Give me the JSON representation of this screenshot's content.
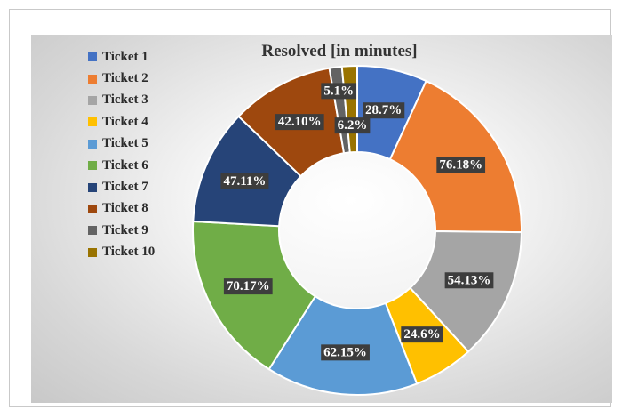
{
  "chart_data": {
    "type": "pie",
    "variant": "donut",
    "title": "Resolved [in minutes]",
    "legend_position": "left",
    "categories": [
      "Ticket 1",
      "Ticket 2",
      "Ticket 3",
      "Ticket 4",
      "Ticket 5",
      "Ticket 6",
      "Ticket 7",
      "Ticket 8",
      "Ticket 9",
      "Ticket 10"
    ],
    "labels": [
      "28.7%",
      "76.18%",
      "54.13%",
      "24.6%",
      "62.15%",
      "70.17%",
      "47.11%",
      "42.10%",
      "5.1%",
      "6.2%"
    ],
    "values": [
      28.7,
      76.18,
      54.13,
      24.6,
      62.15,
      70.17,
      47.11,
      42.1,
      5.1,
      6.2
    ],
    "colors": [
      "#4472C4",
      "#ED7D31",
      "#A5A5A5",
      "#FFC000",
      "#5B9BD5",
      "#70AD47",
      "#264478",
      "#9E480E",
      "#636363",
      "#997300"
    ],
    "label_background": "#3d3d3d"
  }
}
